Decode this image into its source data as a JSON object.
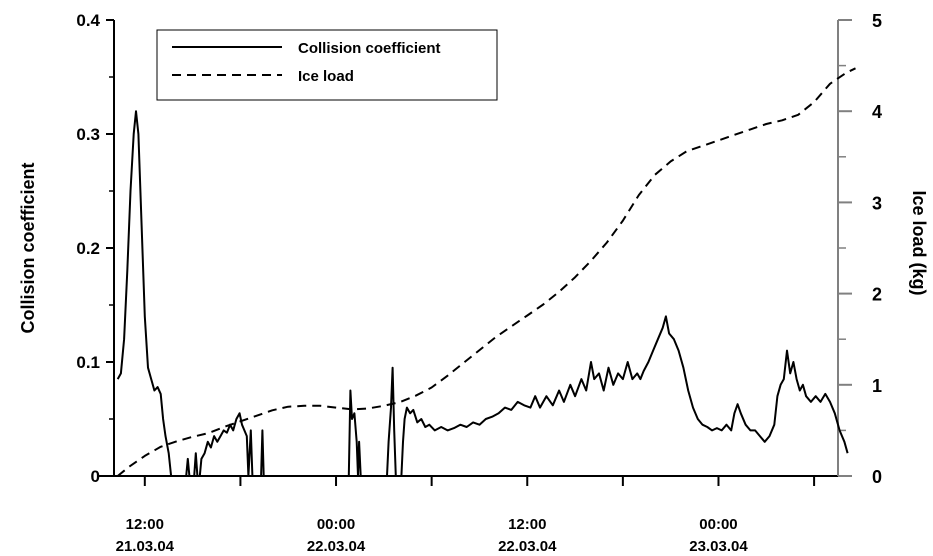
{
  "chart_data": {
    "type": "line",
    "title": "",
    "x_axis": {
      "unit": "hours since 21.03.04 00:00",
      "range": [
        9,
        55.5
      ],
      "ticks": [
        12,
        18,
        24,
        30,
        36,
        42,
        48,
        54
      ],
      "tick_labels": [
        {
          "x": 12,
          "time": "12:00",
          "date": "21.03.04"
        },
        {
          "x": 24,
          "time": "00:00",
          "date": "22.03.04"
        },
        {
          "x": 36,
          "time": "12:00",
          "date": "22.03.04"
        },
        {
          "x": 48,
          "time": "00:00",
          "date": "23.03.04"
        }
      ]
    },
    "y_left": {
      "label": "Collision coefficient",
      "range": [
        0,
        0.4
      ],
      "ticks": [
        0,
        0.1,
        0.2,
        0.3,
        0.4
      ],
      "tick_labels": [
        "0",
        "0.1",
        "0.2",
        "0.3",
        "0.4"
      ]
    },
    "y_right": {
      "label": "Ice load (kg)",
      "range": [
        0,
        5
      ],
      "ticks": [
        0,
        1,
        2,
        3,
        4,
        5
      ],
      "tick_labels": [
        "0",
        "1",
        "2",
        "3",
        "4",
        "5"
      ],
      "color": "#808080"
    },
    "legend": {
      "position": "top-left",
      "entries": [
        {
          "label": "Collision coefficient",
          "style": "solid"
        },
        {
          "label": "Ice load",
          "style": "dashed"
        }
      ]
    },
    "series": [
      {
        "name": "Collision coefficient",
        "axis": "left",
        "style": "solid",
        "points": [
          [
            10.3,
            0.085
          ],
          [
            10.5,
            0.09
          ],
          [
            10.7,
            0.12
          ],
          [
            10.9,
            0.18
          ],
          [
            11.1,
            0.25
          ],
          [
            11.3,
            0.3
          ],
          [
            11.45,
            0.32
          ],
          [
            11.6,
            0.3
          ],
          [
            11.8,
            0.22
          ],
          [
            12.0,
            0.14
          ],
          [
            12.2,
            0.095
          ],
          [
            12.4,
            0.085
          ],
          [
            12.6,
            0.075
          ],
          [
            12.8,
            0.078
          ],
          [
            13.0,
            0.072
          ],
          [
            13.15,
            0.05
          ],
          [
            13.3,
            0.035
          ],
          [
            13.5,
            0.02
          ],
          [
            13.65,
            0.0
          ],
          [
            14.6,
            0.0
          ],
          [
            14.7,
            0.015
          ],
          [
            14.8,
            0.0
          ],
          [
            15.1,
            0.0
          ],
          [
            15.2,
            0.02
          ],
          [
            15.3,
            0.0
          ],
          [
            15.45,
            0.0
          ],
          [
            15.55,
            0.015
          ],
          [
            15.75,
            0.02
          ],
          [
            15.95,
            0.03
          ],
          [
            16.15,
            0.025
          ],
          [
            16.35,
            0.035
          ],
          [
            16.55,
            0.03
          ],
          [
            16.75,
            0.035
          ],
          [
            16.95,
            0.04
          ],
          [
            17.15,
            0.038
          ],
          [
            17.35,
            0.045
          ],
          [
            17.55,
            0.04
          ],
          [
            17.75,
            0.05
          ],
          [
            17.95,
            0.055
          ],
          [
            18.1,
            0.045
          ],
          [
            18.25,
            0.04
          ],
          [
            18.4,
            0.035
          ],
          [
            18.5,
            0.0
          ],
          [
            18.65,
            0.04
          ],
          [
            18.75,
            0.0
          ],
          [
            19.3,
            0.0
          ],
          [
            19.38,
            0.04
          ],
          [
            19.46,
            0.0
          ],
          [
            24.8,
            0.0
          ],
          [
            24.9,
            0.075
          ],
          [
            25.0,
            0.05
          ],
          [
            25.15,
            0.055
          ],
          [
            25.3,
            0.03
          ],
          [
            25.38,
            0.0
          ],
          [
            25.45,
            0.03
          ],
          [
            25.55,
            0.0
          ],
          [
            27.2,
            0.0
          ],
          [
            27.3,
            0.03
          ],
          [
            27.45,
            0.06
          ],
          [
            27.55,
            0.095
          ],
          [
            27.65,
            0.04
          ],
          [
            27.75,
            0.0
          ],
          [
            28.1,
            0.0
          ],
          [
            28.2,
            0.03
          ],
          [
            28.3,
            0.05
          ],
          [
            28.45,
            0.06
          ],
          [
            28.65,
            0.055
          ],
          [
            28.85,
            0.058
          ],
          [
            29.1,
            0.047
          ],
          [
            29.35,
            0.05
          ],
          [
            29.6,
            0.043
          ],
          [
            29.85,
            0.045
          ],
          [
            30.2,
            0.04
          ],
          [
            30.6,
            0.043
          ],
          [
            31.0,
            0.04
          ],
          [
            31.4,
            0.042
          ],
          [
            31.8,
            0.045
          ],
          [
            32.2,
            0.043
          ],
          [
            32.6,
            0.047
          ],
          [
            33.0,
            0.045
          ],
          [
            33.4,
            0.05
          ],
          [
            33.8,
            0.052
          ],
          [
            34.2,
            0.055
          ],
          [
            34.6,
            0.06
          ],
          [
            35.0,
            0.058
          ],
          [
            35.4,
            0.065
          ],
          [
            35.8,
            0.062
          ],
          [
            36.2,
            0.06
          ],
          [
            36.5,
            0.07
          ],
          [
            36.8,
            0.06
          ],
          [
            37.2,
            0.07
          ],
          [
            37.6,
            0.062
          ],
          [
            38.0,
            0.075
          ],
          [
            38.3,
            0.065
          ],
          [
            38.7,
            0.08
          ],
          [
            39.0,
            0.07
          ],
          [
            39.4,
            0.085
          ],
          [
            39.7,
            0.075
          ],
          [
            40.0,
            0.1
          ],
          [
            40.2,
            0.085
          ],
          [
            40.5,
            0.09
          ],
          [
            40.8,
            0.075
          ],
          [
            41.1,
            0.095
          ],
          [
            41.4,
            0.08
          ],
          [
            41.7,
            0.09
          ],
          [
            42.0,
            0.085
          ],
          [
            42.3,
            0.1
          ],
          [
            42.6,
            0.085
          ],
          [
            42.9,
            0.09
          ],
          [
            43.1,
            0.085
          ],
          [
            43.3,
            0.092
          ],
          [
            43.6,
            0.1
          ],
          [
            43.9,
            0.11
          ],
          [
            44.2,
            0.12
          ],
          [
            44.5,
            0.13
          ],
          [
            44.7,
            0.14
          ],
          [
            44.9,
            0.125
          ],
          [
            45.2,
            0.12
          ],
          [
            45.5,
            0.11
          ],
          [
            45.8,
            0.095
          ],
          [
            46.1,
            0.075
          ],
          [
            46.4,
            0.06
          ],
          [
            46.7,
            0.05
          ],
          [
            47.0,
            0.045
          ],
          [
            47.3,
            0.043
          ],
          [
            47.6,
            0.04
          ],
          [
            47.9,
            0.042
          ],
          [
            48.2,
            0.04
          ],
          [
            48.5,
            0.045
          ],
          [
            48.8,
            0.04
          ],
          [
            49.0,
            0.055
          ],
          [
            49.2,
            0.063
          ],
          [
            49.4,
            0.055
          ],
          [
            49.7,
            0.045
          ],
          [
            50.0,
            0.04
          ],
          [
            50.3,
            0.04
          ],
          [
            50.6,
            0.035
          ],
          [
            50.9,
            0.03
          ],
          [
            51.2,
            0.035
          ],
          [
            51.5,
            0.045
          ],
          [
            51.7,
            0.07
          ],
          [
            51.9,
            0.08
          ],
          [
            52.1,
            0.085
          ],
          [
            52.3,
            0.11
          ],
          [
            52.5,
            0.09
          ],
          [
            52.7,
            0.1
          ],
          [
            52.9,
            0.085
          ],
          [
            53.1,
            0.075
          ],
          [
            53.3,
            0.08
          ],
          [
            53.5,
            0.07
          ],
          [
            53.8,
            0.065
          ],
          [
            54.1,
            0.07
          ],
          [
            54.4,
            0.065
          ],
          [
            54.7,
            0.072
          ],
          [
            55.0,
            0.065
          ],
          [
            55.3,
            0.055
          ],
          [
            55.6,
            0.04
          ],
          [
            55.9,
            0.03
          ],
          [
            56.1,
            0.02
          ]
        ]
      },
      {
        "name": "Ice load",
        "axis": "right",
        "style": "dashed",
        "points": [
          [
            10.3,
            0.0
          ],
          [
            11.0,
            0.1
          ],
          [
            12.0,
            0.22
          ],
          [
            13.0,
            0.32
          ],
          [
            14.0,
            0.38
          ],
          [
            15.0,
            0.43
          ],
          [
            16.0,
            0.47
          ],
          [
            17.0,
            0.54
          ],
          [
            18.0,
            0.6
          ],
          [
            19.0,
            0.66
          ],
          [
            20.0,
            0.72
          ],
          [
            21.0,
            0.76
          ],
          [
            22.0,
            0.77
          ],
          [
            23.0,
            0.77
          ],
          [
            24.0,
            0.75
          ],
          [
            25.0,
            0.73
          ],
          [
            26.0,
            0.74
          ],
          [
            27.0,
            0.77
          ],
          [
            28.0,
            0.81
          ],
          [
            29.0,
            0.88
          ],
          [
            30.0,
            0.97
          ],
          [
            31.0,
            1.1
          ],
          [
            32.0,
            1.24
          ],
          [
            33.0,
            1.38
          ],
          [
            34.0,
            1.52
          ],
          [
            35.0,
            1.64
          ],
          [
            36.0,
            1.76
          ],
          [
            37.0,
            1.88
          ],
          [
            38.0,
            2.02
          ],
          [
            39.0,
            2.18
          ],
          [
            40.0,
            2.36
          ],
          [
            41.0,
            2.56
          ],
          [
            42.0,
            2.8
          ],
          [
            43.0,
            3.08
          ],
          [
            44.0,
            3.3
          ],
          [
            45.0,
            3.45
          ],
          [
            46.0,
            3.56
          ],
          [
            47.0,
            3.62
          ],
          [
            48.0,
            3.68
          ],
          [
            49.0,
            3.74
          ],
          [
            50.0,
            3.8
          ],
          [
            51.0,
            3.86
          ],
          [
            52.0,
            3.9
          ],
          [
            53.0,
            3.96
          ],
          [
            54.0,
            4.1
          ],
          [
            55.0,
            4.3
          ],
          [
            56.0,
            4.42
          ],
          [
            56.6,
            4.47
          ]
        ]
      }
    ]
  }
}
